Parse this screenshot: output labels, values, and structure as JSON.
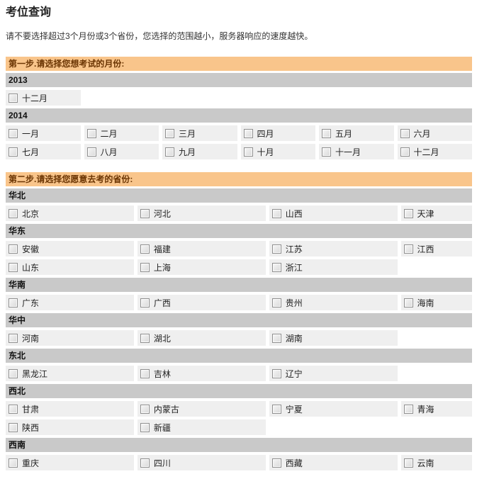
{
  "page": {
    "title": "考位查询",
    "note": "请不要选择超过3个月份或3个省份，您选择的范围越小，服务器响应的速度越快。"
  },
  "colors": {
    "step_header_bg": "#f9c58b",
    "step_header_text": "#6b3503",
    "group_bar_bg": "#c9c9c9",
    "cell_bg": "#efefef"
  },
  "steps": [
    {
      "id": "step1",
      "label": "第一步.请选择您想考试的月份:",
      "columns": 6,
      "item_kind": "month",
      "groups": [
        {
          "label": "2013",
          "rows": [
            [
              "十二月"
            ]
          ]
        },
        {
          "label": "2014",
          "rows": [
            [
              "一月",
              "二月",
              "三月",
              "四月",
              "五月",
              "六月"
            ],
            [
              "七月",
              "八月",
              "九月",
              "十月",
              "十一月",
              "十二月"
            ]
          ]
        }
      ]
    },
    {
      "id": "step2",
      "label": "第二步.请选择您愿意去考的省份:",
      "columns": 4,
      "item_kind": "province",
      "groups": [
        {
          "label": "华北",
          "rows": [
            [
              "北京",
              "河北",
              "山西",
              "天津"
            ]
          ]
        },
        {
          "label": "华东",
          "rows": [
            [
              "安徽",
              "福建",
              "江苏",
              "江西"
            ],
            [
              "山东",
              "上海",
              "浙江"
            ]
          ]
        },
        {
          "label": "华南",
          "rows": [
            [
              "广东",
              "广西",
              "贵州",
              "海南"
            ]
          ]
        },
        {
          "label": "华中",
          "rows": [
            [
              "河南",
              "湖北",
              "湖南"
            ]
          ]
        },
        {
          "label": "东北",
          "rows": [
            [
              "黑龙江",
              "吉林",
              "辽宁"
            ]
          ]
        },
        {
          "label": "西北",
          "rows": [
            [
              "甘肃",
              "内蒙古",
              "宁夏",
              "青海"
            ],
            [
              "陕西",
              "新疆"
            ]
          ]
        },
        {
          "label": "西南",
          "rows": [
            [
              "重庆",
              "四川",
              "西藏",
              "云南"
            ]
          ]
        }
      ]
    }
  ]
}
